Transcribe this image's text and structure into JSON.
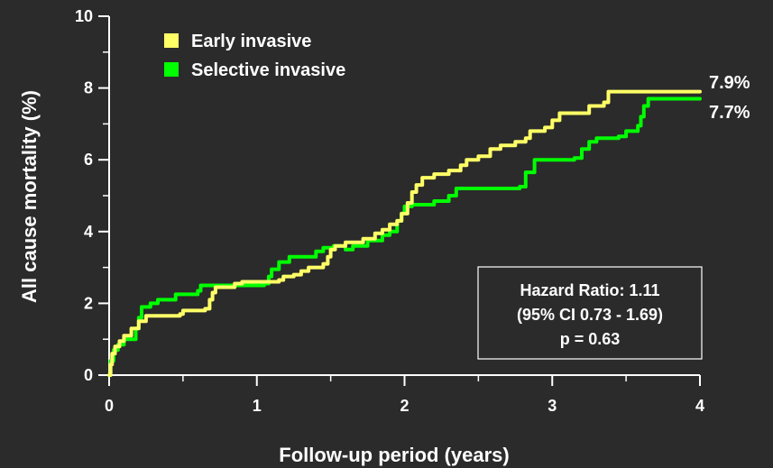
{
  "colors": {
    "background": "#2b2b2b",
    "axis": "#ffffff",
    "early": "#ffff66",
    "selective": "#00ff00"
  },
  "chart_data": {
    "type": "line",
    "xlabel": "Follow-up period (years)",
    "ylabel": "All cause mortality (%)",
    "xlim": [
      0,
      4
    ],
    "ylim": [
      0,
      10
    ],
    "x_ticks": [
      "0",
      "1",
      "2",
      "3",
      "4"
    ],
    "y_ticks": [
      "0",
      "2",
      "4",
      "6",
      "8",
      "10"
    ],
    "grid": false,
    "legend_position": "top-left",
    "series": [
      {
        "name": "Early invasive",
        "color": "#ffff66",
        "end_label": "7.9%",
        "points": [
          [
            0,
            0
          ],
          [
            0.01,
            0.3
          ],
          [
            0.02,
            0.6
          ],
          [
            0.04,
            0.8
          ],
          [
            0.07,
            0.95
          ],
          [
            0.1,
            1.1
          ],
          [
            0.15,
            1.3
          ],
          [
            0.2,
            1.5
          ],
          [
            0.25,
            1.65
          ],
          [
            0.48,
            1.7
          ],
          [
            0.5,
            1.8
          ],
          [
            0.65,
            1.85
          ],
          [
            0.68,
            2.1
          ],
          [
            0.7,
            2.3
          ],
          [
            0.72,
            2.45
          ],
          [
            0.85,
            2.55
          ],
          [
            0.9,
            2.6
          ],
          [
            1.15,
            2.65
          ],
          [
            1.18,
            2.75
          ],
          [
            1.25,
            2.8
          ],
          [
            1.3,
            2.9
          ],
          [
            1.35,
            3.0
          ],
          [
            1.45,
            3.1
          ],
          [
            1.48,
            3.3
          ],
          [
            1.5,
            3.5
          ],
          [
            1.53,
            3.6
          ],
          [
            1.6,
            3.7
          ],
          [
            1.72,
            3.8
          ],
          [
            1.8,
            3.95
          ],
          [
            1.85,
            4.05
          ],
          [
            1.9,
            4.2
          ],
          [
            1.95,
            4.3
          ],
          [
            1.98,
            4.5
          ],
          [
            2.02,
            4.8
          ],
          [
            2.05,
            5.1
          ],
          [
            2.08,
            5.3
          ],
          [
            2.12,
            5.5
          ],
          [
            2.2,
            5.6
          ],
          [
            2.3,
            5.7
          ],
          [
            2.38,
            5.85
          ],
          [
            2.42,
            6.0
          ],
          [
            2.5,
            6.1
          ],
          [
            2.58,
            6.3
          ],
          [
            2.65,
            6.4
          ],
          [
            2.75,
            6.5
          ],
          [
            2.82,
            6.6
          ],
          [
            2.85,
            6.8
          ],
          [
            2.95,
            6.9
          ],
          [
            3.0,
            7.1
          ],
          [
            3.05,
            7.3
          ],
          [
            3.25,
            7.5
          ],
          [
            3.35,
            7.6
          ],
          [
            3.38,
            7.9
          ],
          [
            4.0,
            7.9
          ]
        ]
      },
      {
        "name": "Selective invasive",
        "color": "#00ff00",
        "end_label": "7.7%",
        "points": [
          [
            0,
            0
          ],
          [
            0.01,
            0.4
          ],
          [
            0.03,
            0.7
          ],
          [
            0.06,
            0.85
          ],
          [
            0.1,
            1.0
          ],
          [
            0.18,
            1.3
          ],
          [
            0.2,
            1.6
          ],
          [
            0.22,
            1.9
          ],
          [
            0.28,
            2.0
          ],
          [
            0.33,
            2.1
          ],
          [
            0.45,
            2.25
          ],
          [
            0.6,
            2.35
          ],
          [
            0.62,
            2.5
          ],
          [
            0.8,
            2.5
          ],
          [
            1.05,
            2.55
          ],
          [
            1.08,
            2.75
          ],
          [
            1.1,
            2.95
          ],
          [
            1.15,
            3.15
          ],
          [
            1.22,
            3.3
          ],
          [
            1.4,
            3.45
          ],
          [
            1.45,
            3.55
          ],
          [
            1.52,
            3.6
          ],
          [
            1.6,
            3.5
          ],
          [
            1.65,
            3.6
          ],
          [
            1.75,
            3.75
          ],
          [
            1.85,
            3.9
          ],
          [
            1.9,
            4.0
          ],
          [
            1.95,
            4.3
          ],
          [
            1.98,
            4.5
          ],
          [
            2.0,
            4.7
          ],
          [
            2.05,
            4.75
          ],
          [
            2.2,
            4.85
          ],
          [
            2.3,
            5.0
          ],
          [
            2.35,
            5.2
          ],
          [
            2.78,
            5.25
          ],
          [
            2.82,
            5.65
          ],
          [
            2.88,
            6.0
          ],
          [
            3.15,
            6.05
          ],
          [
            3.2,
            6.3
          ],
          [
            3.25,
            6.5
          ],
          [
            3.3,
            6.6
          ],
          [
            3.45,
            6.65
          ],
          [
            3.5,
            6.8
          ],
          [
            3.58,
            6.95
          ],
          [
            3.6,
            7.2
          ],
          [
            3.62,
            7.5
          ],
          [
            3.65,
            7.7
          ],
          [
            4.0,
            7.7
          ]
        ]
      }
    ],
    "annotation": {
      "lines": [
        "Hazard Ratio: 1.11",
        "(95% CI 0.73 - 1.69)",
        "p = 0.63"
      ]
    }
  }
}
